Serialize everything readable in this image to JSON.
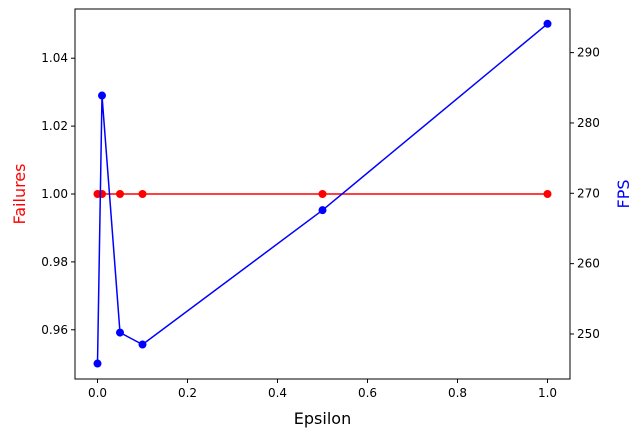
{
  "chart_data": {
    "type": "line",
    "xlabel": "Epsilon",
    "ylabel_left": "Failures",
    "ylabel_right": "FPS",
    "x": [
      0.0,
      0.01,
      0.05,
      0.1,
      0.5,
      1.0
    ],
    "xlim": [
      -0.05,
      1.05
    ],
    "ylim_left": [
      0.9455,
      1.0545
    ],
    "ylim_right": [
      243.6,
      296.2
    ],
    "x_ticks": [
      0.0,
      0.2,
      0.4,
      0.6,
      0.8,
      1.0
    ],
    "x_tick_labels": [
      "0.0",
      "0.2",
      "0.4",
      "0.6",
      "0.8",
      "1.0"
    ],
    "y_left_ticks": [
      0.96,
      0.98,
      1.0,
      1.02,
      1.04
    ],
    "y_left_tick_labels": [
      "0.96",
      "0.98",
      "1.00",
      "1.02",
      "1.04"
    ],
    "y_right_ticks": [
      250,
      260,
      270,
      280,
      290
    ],
    "y_right_tick_labels": [
      "250",
      "260",
      "270",
      "280",
      "290"
    ],
    "grid": false,
    "legend": "none",
    "series": [
      {
        "axis": "left",
        "color": "#ff0000",
        "marker": "circle",
        "values": [
          1.0,
          1.0,
          1.0,
          1.0,
          1.0,
          1.0
        ]
      },
      {
        "axis": "right",
        "color": "#0000ff",
        "marker": "circle",
        "values": [
          245.8,
          283.9,
          250.2,
          248.5,
          267.6,
          294.1
        ]
      }
    ],
    "colors": {
      "left_axis_label": "#ff0000",
      "right_axis_label": "#0000ff"
    }
  }
}
